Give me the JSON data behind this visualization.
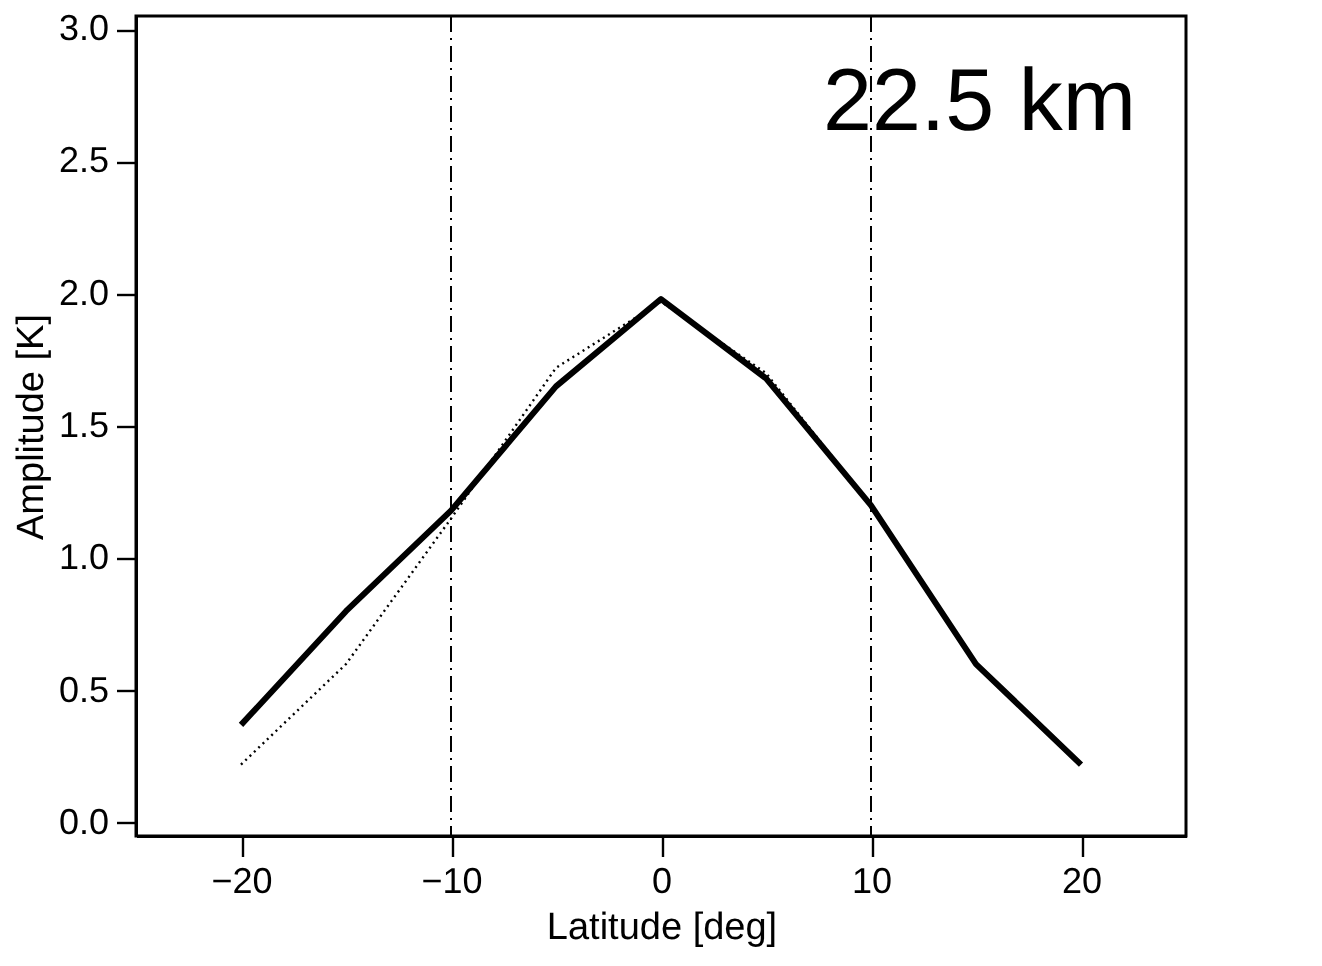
{
  "chart_data": {
    "type": "line",
    "xlabel": "Latitude [deg]",
    "ylabel": "Amplitude [K]",
    "x": [
      -20,
      -15,
      -10,
      -5,
      0,
      5,
      10,
      15,
      20
    ],
    "xlim": [
      -25,
      25
    ],
    "xticks": [
      {
        "value": -20,
        "label": "−20"
      },
      {
        "value": -10,
        "label": "−10"
      },
      0,
      10,
      20
    ],
    "ylim": [
      -0.05,
      3.05
    ],
    "yticks": [
      {
        "value": 0,
        "label": "0.0"
      },
      {
        "value": 0.5,
        "label": "0.5"
      },
      {
        "value": 1,
        "label": "1.0"
      },
      {
        "value": 1.5,
        "label": "1.5"
      },
      {
        "value": 2,
        "label": "2.0"
      },
      {
        "value": 2.5,
        "label": "2.5"
      },
      {
        "value": 3,
        "label": "3.0"
      }
    ],
    "series": [
      {
        "color": "#000000",
        "line_style": "solid",
        "values": [
          0.37,
          0.8,
          1.18,
          1.65,
          1.98,
          1.68,
          1.2,
          0.6,
          0.22
        ]
      },
      {
        "color": "#000000",
        "line_style": "dotted",
        "values": [
          0.22,
          0.6,
          1.15,
          1.72,
          1.97,
          1.7,
          1.2,
          0.6,
          0.22
        ]
      }
    ],
    "ref_lines": [
      {
        "axis": "x",
        "value": -10,
        "line_style": "dashdot"
      },
      {
        "axis": "x",
        "value": 10,
        "line_style": "dashdot"
      }
    ],
    "annotations": [
      "22.5 km"
    ],
    "grid": false,
    "legend": false
  }
}
